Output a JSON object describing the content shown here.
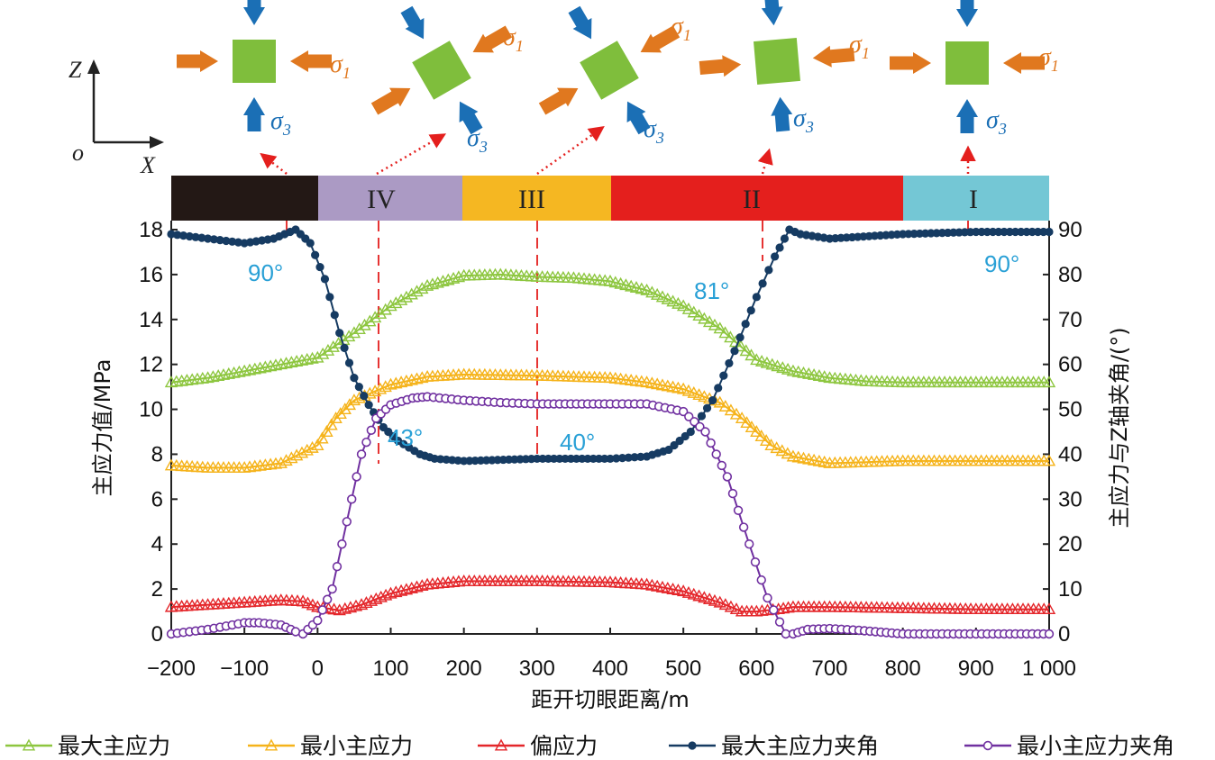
{
  "chart_data": {
    "type": "line",
    "x_ticks": [
      "−200",
      "−100",
      "0",
      "100",
      "200",
      "300",
      "400",
      "500",
      "600",
      "700",
      "800",
      "900",
      "1 000"
    ],
    "y_left_ticks": [
      "0",
      "2",
      "4",
      "6",
      "8",
      "10",
      "12",
      "14",
      "16",
      "18"
    ],
    "y_right_ticks": [
      "0",
      "10",
      "20",
      "30",
      "40",
      "50",
      "60",
      "70",
      "80",
      "90"
    ],
    "xlabel": "距开切眼距离/m",
    "ylabel_left": "主应力值/MPa",
    "ylabel_right": "主应力与Z轴夹角/(°)",
    "xlim": [
      -200,
      1000
    ],
    "ylim_left": [
      0,
      18
    ],
    "ylim_right": [
      0,
      90
    ],
    "grid": false,
    "legend_position": "bottom",
    "series": [
      {
        "name": "最大主应力",
        "axis": "left",
        "color": "#8dc63f",
        "marker": "triangle-open",
        "points": [
          [
            -200,
            11.2
          ],
          [
            -150,
            11.4
          ],
          [
            -100,
            11.7
          ],
          [
            -50,
            12.0
          ],
          [
            0,
            12.3
          ],
          [
            50,
            13.4
          ],
          [
            100,
            14.6
          ],
          [
            150,
            15.5
          ],
          [
            200,
            15.95
          ],
          [
            250,
            16.0
          ],
          [
            300,
            15.9
          ],
          [
            350,
            15.85
          ],
          [
            400,
            15.7
          ],
          [
            450,
            15.3
          ],
          [
            500,
            14.6
          ],
          [
            550,
            13.6
          ],
          [
            600,
            12.2
          ],
          [
            650,
            11.7
          ],
          [
            700,
            11.4
          ],
          [
            750,
            11.25
          ],
          [
            800,
            11.2
          ],
          [
            900,
            11.2
          ],
          [
            1000,
            11.2
          ]
        ]
      },
      {
        "name": "最小主应力",
        "axis": "left",
        "color": "#f5b31a",
        "marker": "triangle-open",
        "points": [
          [
            -200,
            7.5
          ],
          [
            -150,
            7.4
          ],
          [
            -100,
            7.4
          ],
          [
            -50,
            7.6
          ],
          [
            0,
            8.4
          ],
          [
            25,
            9.6
          ],
          [
            50,
            10.4
          ],
          [
            100,
            11.1
          ],
          [
            150,
            11.45
          ],
          [
            200,
            11.55
          ],
          [
            300,
            11.5
          ],
          [
            400,
            11.4
          ],
          [
            450,
            11.2
          ],
          [
            500,
            10.9
          ],
          [
            550,
            10.3
          ],
          [
            580,
            9.6
          ],
          [
            620,
            8.4
          ],
          [
            650,
            7.9
          ],
          [
            700,
            7.6
          ],
          [
            750,
            7.65
          ],
          [
            800,
            7.7
          ],
          [
            900,
            7.7
          ],
          [
            1000,
            7.7
          ]
        ]
      },
      {
        "name": "偏应力",
        "axis": "left",
        "color": "#e4262a",
        "marker": "triangle-open",
        "points": [
          [
            -200,
            1.2
          ],
          [
            -150,
            1.3
          ],
          [
            -100,
            1.4
          ],
          [
            -50,
            1.5
          ],
          [
            -20,
            1.45
          ],
          [
            0,
            1.2
          ],
          [
            30,
            1.05
          ],
          [
            60,
            1.3
          ],
          [
            100,
            1.8
          ],
          [
            150,
            2.2
          ],
          [
            200,
            2.35
          ],
          [
            300,
            2.35
          ],
          [
            400,
            2.3
          ],
          [
            450,
            2.2
          ],
          [
            500,
            1.9
          ],
          [
            550,
            1.4
          ],
          [
            580,
            1.0
          ],
          [
            600,
            1.0
          ],
          [
            630,
            1.1
          ],
          [
            650,
            1.2
          ],
          [
            700,
            1.2
          ],
          [
            800,
            1.15
          ],
          [
            900,
            1.1
          ],
          [
            1000,
            1.1
          ]
        ]
      },
      {
        "name": "最大主应力夹角",
        "axis": "right",
        "color": "#163b62",
        "marker": "circle-filled",
        "points": [
          [
            -200,
            89
          ],
          [
            -150,
            88
          ],
          [
            -100,
            87
          ],
          [
            -60,
            88
          ],
          [
            -30,
            90
          ],
          [
            -10,
            87
          ],
          [
            10,
            79
          ],
          [
            30,
            67
          ],
          [
            50,
            57
          ],
          [
            70,
            51
          ],
          [
            90,
            46
          ],
          [
            110,
            43
          ],
          [
            140,
            40
          ],
          [
            160,
            39
          ],
          [
            200,
            38.5
          ],
          [
            300,
            39
          ],
          [
            400,
            39
          ],
          [
            450,
            39.5
          ],
          [
            480,
            41
          ],
          [
            510,
            45
          ],
          [
            540,
            52
          ],
          [
            570,
            63
          ],
          [
            600,
            75
          ],
          [
            625,
            84
          ],
          [
            645,
            90
          ],
          [
            660,
            89
          ],
          [
            700,
            88
          ],
          [
            800,
            89
          ],
          [
            900,
            89.5
          ],
          [
            1000,
            89.5
          ]
        ]
      },
      {
        "name": "最小主应力夹角",
        "axis": "right",
        "color": "#7030a0",
        "marker": "circle-open",
        "points": [
          [
            -200,
            0
          ],
          [
            -150,
            1
          ],
          [
            -100,
            2.5
          ],
          [
            -80,
            2.5
          ],
          [
            -50,
            2
          ],
          [
            -30,
            0.5
          ],
          [
            -20,
            0
          ],
          [
            0,
            3
          ],
          [
            20,
            10
          ],
          [
            40,
            25
          ],
          [
            60,
            40
          ],
          [
            80,
            48
          ],
          [
            100,
            51
          ],
          [
            130,
            52.5
          ],
          [
            150,
            52.8
          ],
          [
            200,
            52
          ],
          [
            250,
            51.5
          ],
          [
            300,
            51.2
          ],
          [
            400,
            51.2
          ],
          [
            450,
            51.2
          ],
          [
            500,
            49.5
          ],
          [
            530,
            45
          ],
          [
            560,
            35
          ],
          [
            590,
            20
          ],
          [
            615,
            8
          ],
          [
            640,
            0
          ],
          [
            650,
            0
          ],
          [
            670,
            1
          ],
          [
            700,
            1.2
          ],
          [
            740,
            0.8
          ],
          [
            800,
            0
          ],
          [
            900,
            0
          ],
          [
            1000,
            0
          ]
        ]
      }
    ],
    "annotations": [
      "90°",
      "43°",
      "40°",
      "81°",
      "90°"
    ],
    "zones": [
      "IV",
      "III",
      "II",
      "I"
    ],
    "stress_sigma": "σ",
    "stress_sub_1": "1",
    "stress_sub_3": "3",
    "coord_labels": {
      "z": "Z",
      "x": "X",
      "o": "o"
    }
  },
  "colors": {
    "zone_black": "#231815",
    "zone_IV": "#ab9ac4",
    "zone_III": "#f5b722",
    "zone_II": "#e41f1d",
    "zone_I": "#74c7d5",
    "square": "#7fbe3c",
    "arrow_orange": "#e0781f",
    "arrow_blue": "#1b6fb5",
    "annotation": "#29a0d6"
  }
}
